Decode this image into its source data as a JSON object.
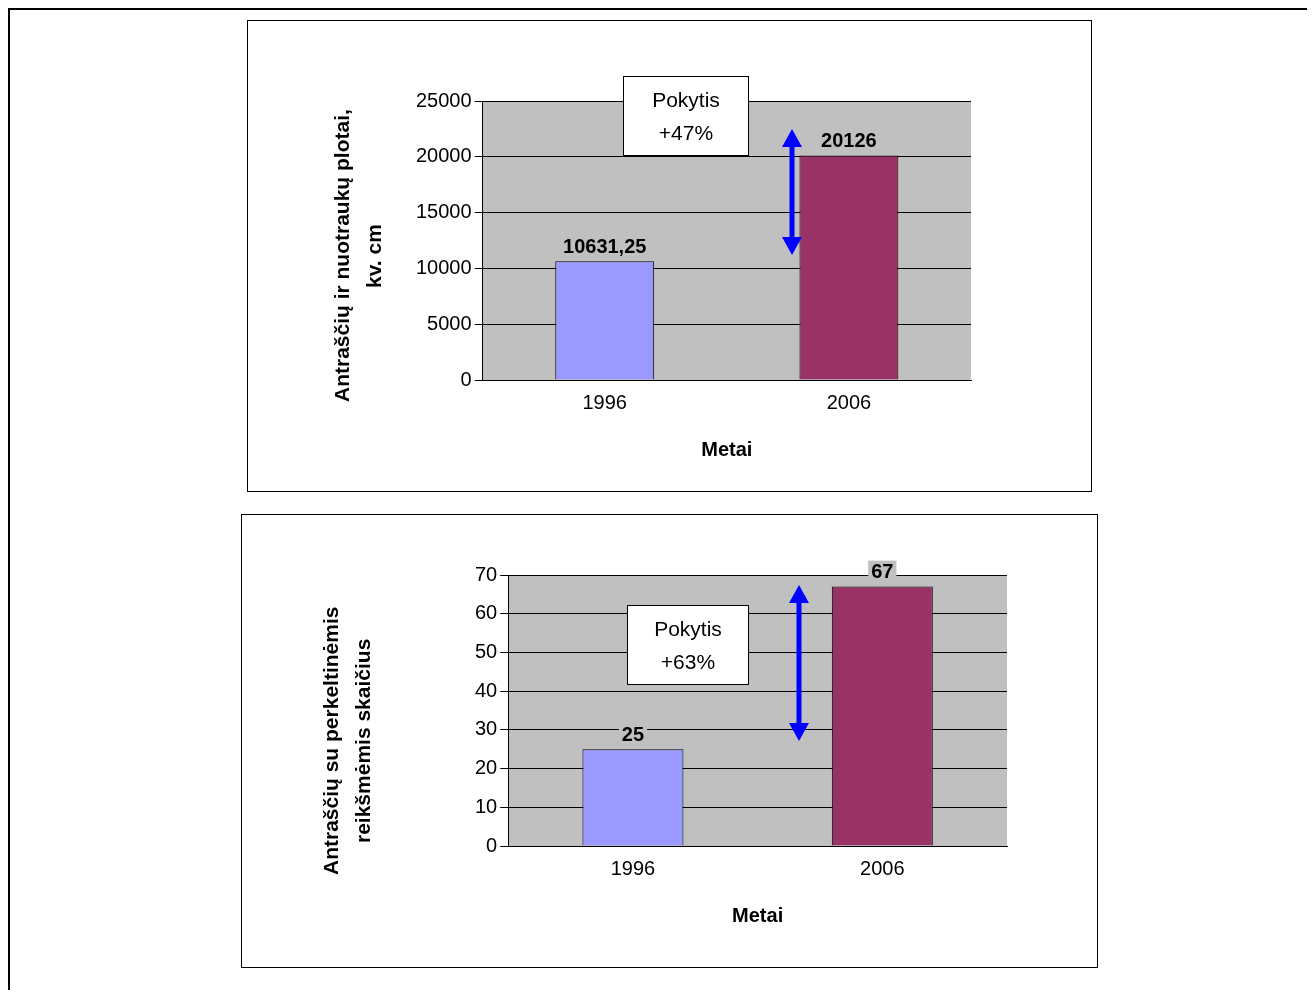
{
  "chart_data": [
    {
      "type": "bar",
      "categories": [
        "1996",
        "2006"
      ],
      "values": [
        10631.25,
        20126
      ],
      "colors": [
        "#9999ff",
        "#993366"
      ],
      "value_labels": [
        "10631,25",
        "20126"
      ],
      "xlabel": "Metai",
      "ylabel": "Antraščių ir nuotraukų plotai, kv. cm",
      "ylim": [
        0,
        25000
      ],
      "yticks": [
        0,
        5000,
        10000,
        15000,
        20000,
        25000
      ],
      "grid": "y",
      "legend": false,
      "annotations": [
        "Pokytis +47%"
      ]
    },
    {
      "type": "bar",
      "categories": [
        "1996",
        "2006"
      ],
      "values": [
        25,
        67
      ],
      "colors": [
        "#9999ff",
        "#993366"
      ],
      "data_labels": true,
      "xlabel": "Metai",
      "ylabel": "Antraščių su perkeltinėmis reikšmėmis skaičius",
      "ylim": [
        0,
        70
      ],
      "yticks": [
        0,
        10,
        20,
        30,
        40,
        50,
        60,
        70
      ],
      "grid": "y",
      "legend": false,
      "annotations": [
        "Pokytis +63%"
      ]
    }
  ]
}
